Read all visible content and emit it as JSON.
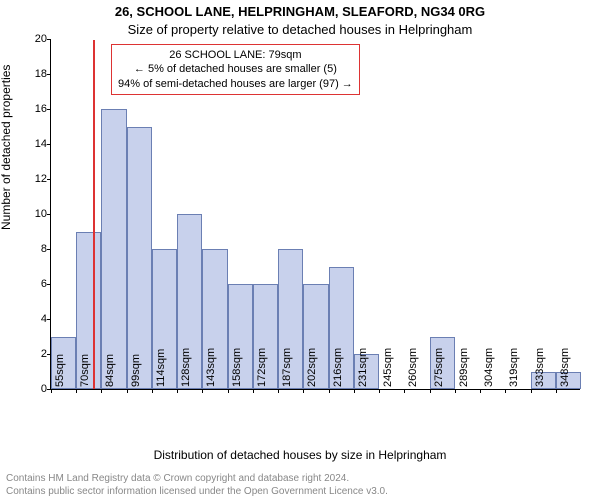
{
  "title": "26, SCHOOL LANE, HELPRINGHAM, SLEAFORD, NG34 0RG",
  "subtitle": "Size of property relative to detached houses in Helpringham",
  "xlabel": "Distribution of detached houses by size in Helpringham",
  "ylabel": "Number of detached properties",
  "footer_line1": "Contains HM Land Registry data © Crown copyright and database right 2024.",
  "footer_line2": "Contains public sector information licensed under the Open Government Licence v3.0.",
  "chart": {
    "type": "histogram",
    "background_color": "#ffffff",
    "bar_fill": "#c8d1ec",
    "bar_border": "#6b7fb3",
    "axis_color": "#000000",
    "ref_color": "#d33",
    "ylim": [
      0,
      20
    ],
    "ytick_step": 2,
    "x_start": 55,
    "x_step": 14.5,
    "n_bars": 21,
    "xticks": [
      "55sqm",
      "70sqm",
      "84sqm",
      "99sqm",
      "114sqm",
      "128sqm",
      "143sqm",
      "158sqm",
      "172sqm",
      "187sqm",
      "202sqm",
      "216sqm",
      "231sqm",
      "245sqm",
      "260sqm",
      "275sqm",
      "289sqm",
      "304sqm",
      "319sqm",
      "333sqm",
      "348sqm"
    ],
    "values": [
      3,
      9,
      16,
      15,
      8,
      10,
      8,
      6,
      6,
      8,
      6,
      7,
      2,
      0,
      0,
      3,
      0,
      0,
      0,
      1,
      1
    ],
    "ref_x": 79,
    "annotation": {
      "line1": "26 SCHOOL LANE: 79sqm",
      "line2": "← 5% of detached houses are smaller (5)",
      "line3": "94% of semi-detached houses are larger (97) →"
    }
  }
}
